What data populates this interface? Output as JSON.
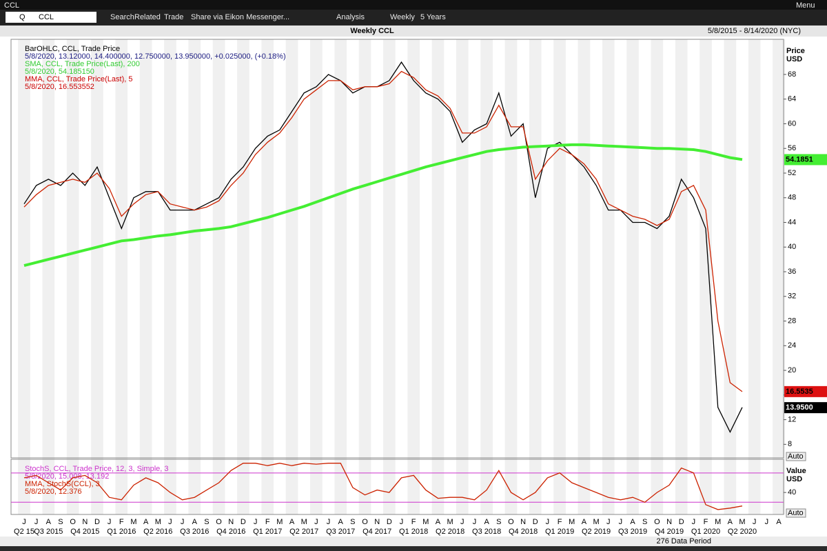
{
  "window": {
    "title": "CCL",
    "menu": "Menu"
  },
  "toolbar": {
    "ric_type": "Q",
    "ric": "CCL",
    "items": [
      "Search",
      "Related",
      "Trade",
      "Share via Eikon Messenger...",
      "Analysis",
      "Weekly",
      "5 Years"
    ]
  },
  "header": {
    "title": "Weekly CCL",
    "range": "5/8/2015 - 8/14/2020 (NYC)"
  },
  "footer": {
    "period": "276 Data Period"
  },
  "chart_data": [
    {
      "type": "line",
      "axis_label": "Price",
      "unit": "USD",
      "scale_button": "Auto",
      "categories": [
        "J",
        "J",
        "A",
        "S",
        "O",
        "N",
        "D",
        "J",
        "F",
        "M",
        "A",
        "M",
        "J",
        "J",
        "A",
        "S",
        "O",
        "N",
        "D",
        "J",
        "F",
        "M",
        "A",
        "M",
        "J",
        "J",
        "A",
        "S",
        "O",
        "N",
        "D",
        "J",
        "F",
        "M",
        "A",
        "M",
        "J",
        "J",
        "A",
        "S",
        "O",
        "N",
        "D",
        "J",
        "F",
        "M",
        "A",
        "M",
        "J",
        "J",
        "A",
        "S",
        "O",
        "N",
        "D",
        "J",
        "F",
        "M",
        "A",
        "M",
        "J",
        "J",
        "A"
      ],
      "quarters": [
        "Q2 15",
        "Q3 2015",
        "Q4 2015",
        "Q1 2016",
        "Q2 2016",
        "Q3 2016",
        "Q4 2016",
        "Q1 2017",
        "Q2 2017",
        "Q3 2017",
        "Q4 2017",
        "Q1 2018",
        "Q2 2018",
        "Q3 2018",
        "Q4 2018",
        "Q1 2019",
        "Q2 2019",
        "Q3 2019",
        "Q4 2019",
        "Q1 2020",
        "Q2 2020"
      ],
      "legend": [
        {
          "text": "BarOHLC, CCL, Trade Price",
          "color": "#000000"
        },
        {
          "text": "5/8/2020, 13.12000, 14.400000, 12.750000, 13.950000, +0.025000, (+0.18%)",
          "color": "#1a1a80"
        },
        {
          "text": "SMA, CCL, Trade Price(Last),  200",
          "color": "#33cc33"
        },
        {
          "text": "5/8/2020, 54.185150",
          "color": "#33cc33"
        },
        {
          "text": "MMA, CCL, Trade Price(Last),  5",
          "color": "#cc0000"
        },
        {
          "text": "5/8/2020, 16.553552",
          "color": "#cc0000"
        }
      ],
      "ylim": [
        5.8,
        73.7
      ],
      "yticks": [
        8,
        12,
        16,
        20,
        24,
        28,
        32,
        36,
        40,
        44,
        48,
        52,
        56,
        60,
        64,
        68
      ],
      "series": [
        {
          "name": "BarOHLC",
          "color": "#000000",
          "values": [
            47,
            50,
            51,
            50,
            52,
            50,
            53,
            48,
            43,
            48,
            49,
            49,
            46,
            46,
            46,
            47,
            48,
            51,
            53,
            56,
            58,
            59,
            62,
            65,
            66,
            68,
            67,
            65,
            66,
            66,
            67,
            70,
            67,
            65,
            64,
            62,
            57,
            59,
            60,
            65,
            58,
            60,
            48,
            56,
            57,
            55,
            53,
            50,
            46,
            46,
            44,
            44,
            43,
            45,
            51,
            48,
            43,
            14,
            10,
            14,
            null,
            null,
            null
          ]
        },
        {
          "name": "SMA",
          "color": "#44ee33",
          "values": [
            37,
            37.5,
            38,
            38.5,
            39,
            39.5,
            40,
            40.5,
            41,
            41.2,
            41.5,
            41.8,
            42,
            42.3,
            42.6,
            42.8,
            43,
            43.3,
            43.8,
            44.3,
            44.8,
            45.4,
            46,
            46.6,
            47.3,
            48,
            48.7,
            49.4,
            50,
            50.6,
            51.2,
            51.8,
            52.4,
            53,
            53.5,
            54,
            54.5,
            55,
            55.5,
            55.8,
            56,
            56.2,
            56.3,
            56.4,
            56.5,
            56.6,
            56.6,
            56.5,
            56.4,
            56.3,
            56.2,
            56.1,
            56,
            56,
            55.9,
            55.8,
            55.5,
            55,
            54.5,
            54.2,
            null,
            null,
            null
          ]
        },
        {
          "name": "MMA",
          "color": "#cc2200",
          "values": [
            46.5,
            48.5,
            50,
            50.5,
            51,
            50.5,
            52,
            49.5,
            45,
            47,
            48.5,
            49,
            47,
            46.5,
            46,
            46.5,
            47.5,
            50,
            52,
            55,
            57,
            58.5,
            61,
            64,
            65.5,
            67,
            67,
            65.5,
            66,
            66,
            66.5,
            68.5,
            67.5,
            65.5,
            64.5,
            62.5,
            58.5,
            58.5,
            59.5,
            63,
            59.5,
            59.5,
            51,
            54,
            56,
            55,
            53.5,
            51,
            47,
            46,
            45,
            44.5,
            43.5,
            44.5,
            49,
            50,
            46,
            28,
            18,
            16.55,
            null,
            null,
            null
          ]
        }
      ],
      "price_tags": [
        {
          "value": 54.18515,
          "label": "54.1851",
          "color": "#44ee33"
        },
        {
          "value": 16.55355,
          "label": "16.5535",
          "color": "#dd1111"
        },
        {
          "value": 13.95,
          "label": "13.9500",
          "color": "#000000"
        }
      ]
    },
    {
      "type": "line",
      "axis_label": "Value",
      "unit": "USD",
      "scale_button": "Auto",
      "legend": [
        {
          "text": "StochS, CCL, Trade Price,  12, 3, Simple, 3",
          "color": "#cc33cc"
        },
        {
          "text": "5/8/2020, 15.008, 13.192",
          "color": "#cc33cc"
        },
        {
          "text": "MMA, StochS(CCL), 3",
          "color": "#cc2200"
        },
        {
          "text": "5/8/2020, 12.376",
          "color": "#cc2200"
        }
      ],
      "ylim": [
        -5,
        108
      ],
      "yticks": [
        40
      ],
      "levels": [
        80,
        20
      ],
      "series": [
        {
          "name": "MMA StochS",
          "color": "#cc2200",
          "values": [
            70,
            75,
            60,
            45,
            70,
            75,
            60,
            30,
            25,
            55,
            70,
            60,
            40,
            25,
            30,
            45,
            60,
            85,
            100,
            100,
            95,
            100,
            95,
            100,
            98,
            100,
            100,
            50,
            35,
            45,
            40,
            70,
            75,
            45,
            28,
            30,
            30,
            25,
            45,
            85,
            40,
            25,
            40,
            70,
            80,
            60,
            50,
            40,
            30,
            25,
            30,
            20,
            40,
            55,
            90,
            80,
            15,
            5,
            8,
            12.376,
            null,
            null,
            null
          ]
        }
      ]
    }
  ]
}
